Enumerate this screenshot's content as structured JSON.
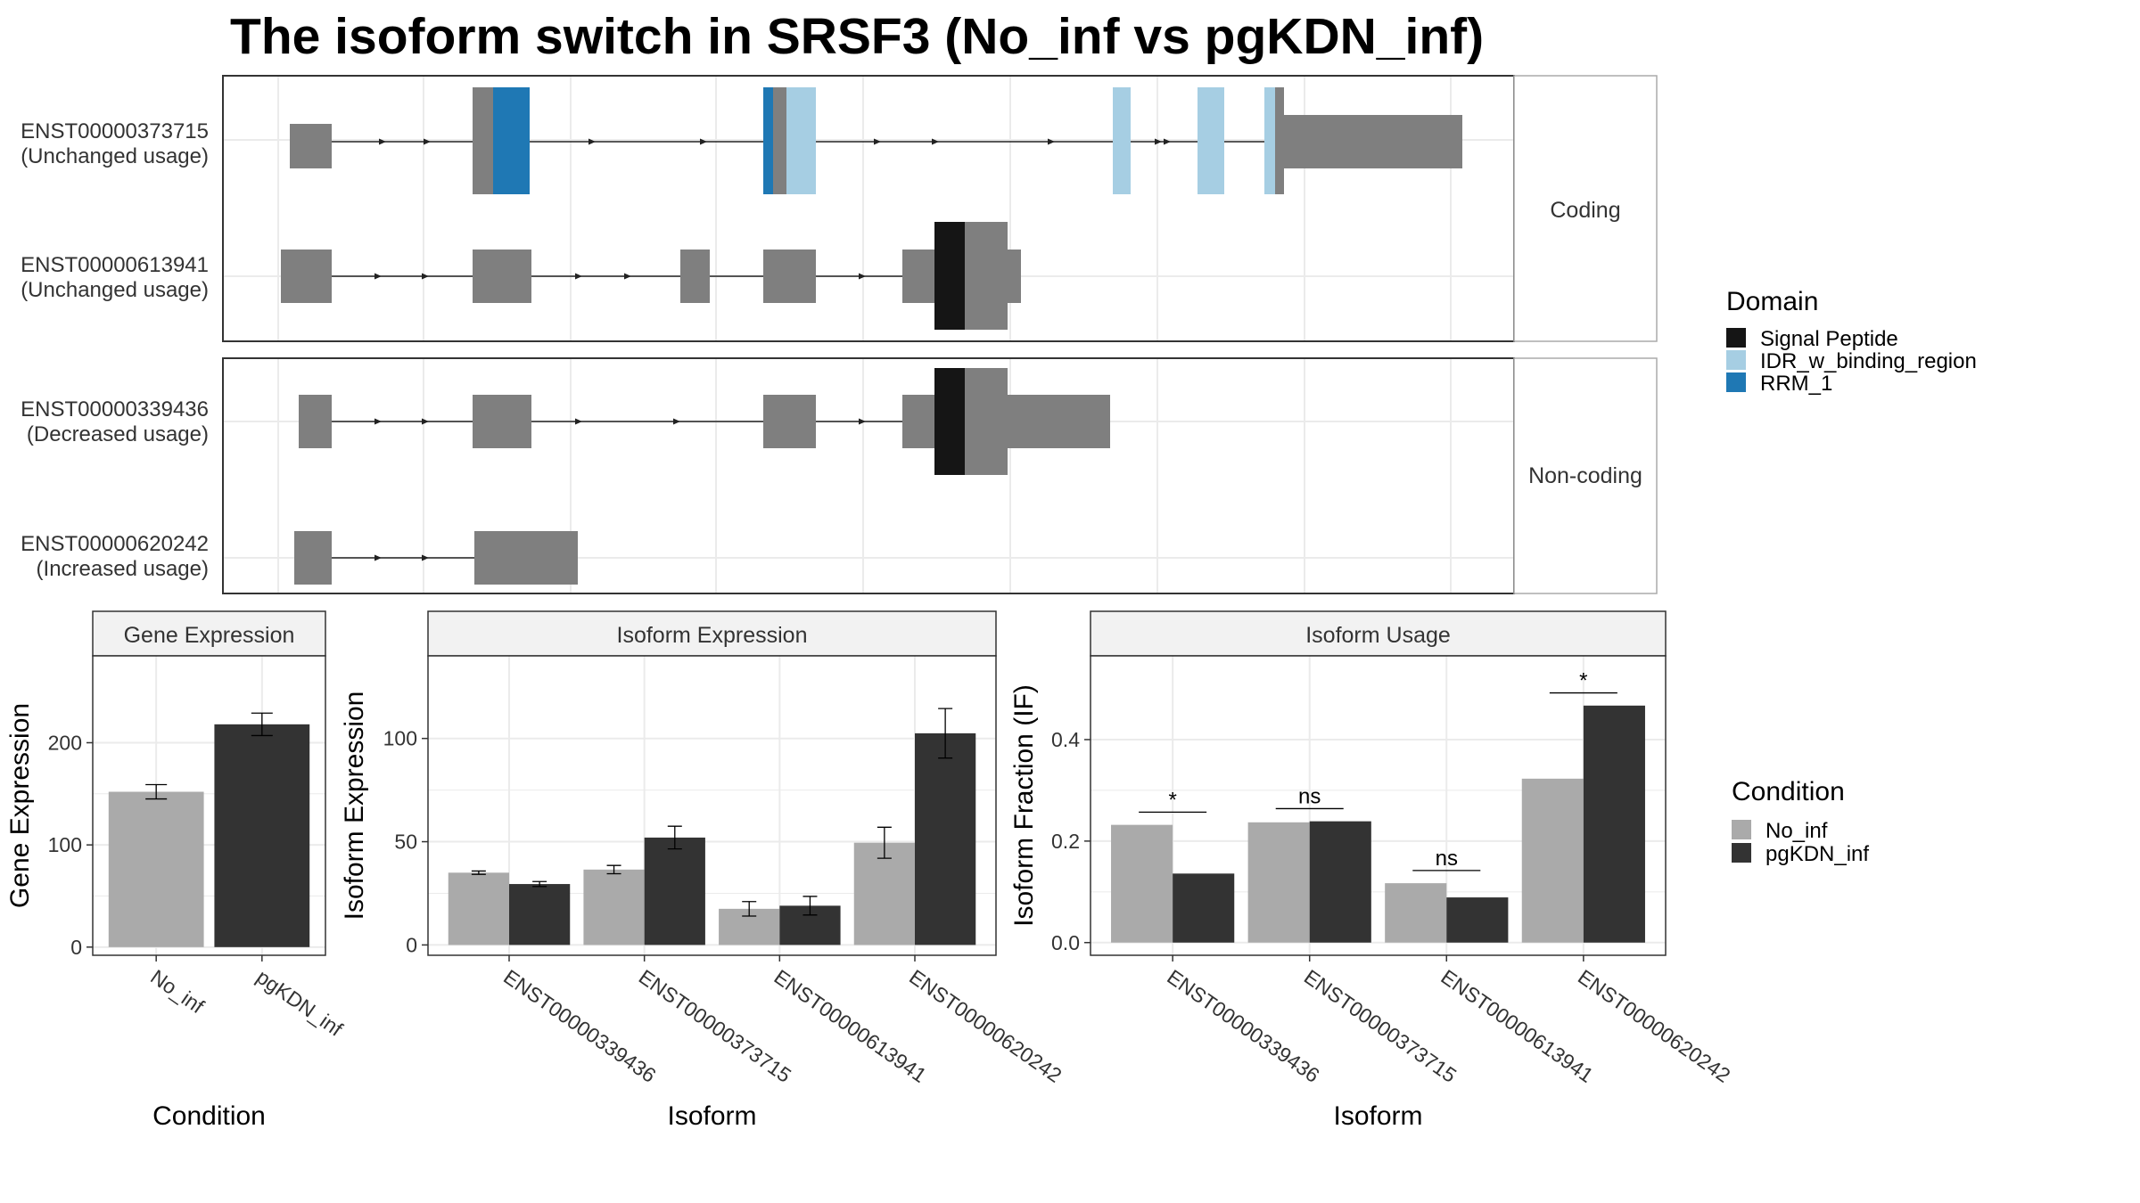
{
  "title": "The isoform switch in SRSF3 (No_inf vs pgKDN_inf)",
  "colors": {
    "exon": "#7F7F7F",
    "signal_peptide": "#151515",
    "idr": "#A6CEE3",
    "rrm": "#1F78B4",
    "no_inf": "#AAAAAA",
    "pgkdn_inf": "#333333",
    "grid": "#EBEBEB",
    "strip": "#F2F2F2"
  },
  "transcript_panels": [
    {
      "strip": "Coding",
      "transcripts": [
        {
          "id": "ENST00000373715",
          "usage": "(Unchanged usage)"
        },
        {
          "id": "ENST00000613941",
          "usage": "(Unchanged usage)"
        }
      ]
    },
    {
      "strip": "Non-coding",
      "transcripts": [
        {
          "id": "ENST00000339436",
          "usage": "(Decreased usage)"
        },
        {
          "id": "ENST00000620242",
          "usage": "(Increased usage)"
        }
      ]
    }
  ],
  "domain_legend": {
    "title": "Domain",
    "items": [
      {
        "label": "Signal Peptide",
        "color": "#151515"
      },
      {
        "label": "IDR_w_binding_region",
        "color": "#A6CEE3"
      },
      {
        "label": "RRM_1",
        "color": "#1F78B4"
      }
    ]
  },
  "condition_legend": {
    "title": "Condition",
    "items": [
      {
        "label": "No_inf",
        "color": "#AAAAAA"
      },
      {
        "label": "pgKDN_inf",
        "color": "#333333"
      }
    ]
  },
  "chart_data": [
    {
      "type": "bar",
      "strip": "Gene Expression",
      "xlabel": "Condition",
      "ylabel": "Gene Expression",
      "categories": [
        "No_inf",
        "pgKDN_inf"
      ],
      "values": [
        152,
        218
      ],
      "errors": [
        7,
        11
      ],
      "colors": [
        "#AAAAAA",
        "#333333"
      ],
      "ylim": [
        -8,
        285
      ],
      "yticks": [
        0,
        100,
        200
      ]
    },
    {
      "type": "bar",
      "strip": "Isoform Expression",
      "xlabel": "Isoform",
      "ylabel": "Isoform Expression",
      "categories": [
        "ENST00000339436",
        "ENST00000373715",
        "ENST00000613941",
        "ENST00000620242"
      ],
      "series": [
        {
          "name": "No_inf",
          "values": [
            35,
            36.5,
            17.5,
            49.5
          ],
          "errors": [
            0.8,
            2,
            3.5,
            7.5
          ]
        },
        {
          "name": "pgKDN_inf",
          "values": [
            29.5,
            52,
            19,
            102.5
          ],
          "errors": [
            1.2,
            5.5,
            4.5,
            12
          ]
        }
      ],
      "ylim": [
        -5,
        140
      ],
      "yticks": [
        0,
        50,
        100
      ]
    },
    {
      "type": "bar",
      "strip": "Isoform Usage",
      "xlabel": "Isoform",
      "ylabel": "Isoform Fraction (IF)",
      "categories": [
        "ENST00000339436",
        "ENST00000373715",
        "ENST00000613941",
        "ENST00000620242"
      ],
      "series": [
        {
          "name": "No_inf",
          "values": [
            0.232,
            0.237,
            0.117,
            0.323
          ]
        },
        {
          "name": "pgKDN_inf",
          "values": [
            0.136,
            0.239,
            0.089,
            0.467
          ]
        }
      ],
      "significance": [
        "*",
        "ns",
        "ns",
        "*"
      ],
      "ylim": [
        -0.025,
        0.565
      ],
      "yticks": [
        0.0,
        0.2,
        0.4
      ],
      "ytick_labels": [
        "0.0",
        "0.2",
        "0.4"
      ]
    }
  ]
}
